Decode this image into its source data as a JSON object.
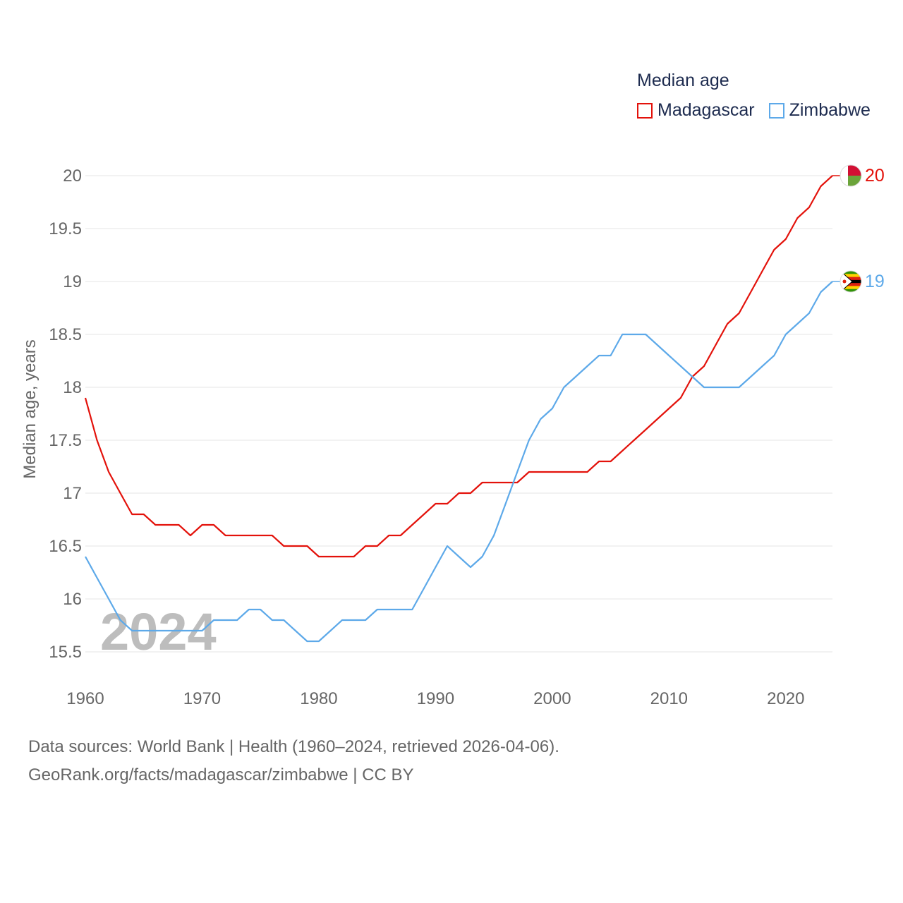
{
  "legend": {
    "title": "Median age",
    "items": [
      {
        "label": "Madagascar",
        "color": "#e3120b"
      },
      {
        "label": "Zimbabwe",
        "color": "#5da9e9"
      }
    ]
  },
  "footer": {
    "line1": "Data sources: World Bank | Health (1960–2024, retrieved 2026-04-06).",
    "line2": "GeoRank.org/facts/madagascar/zimbabwe | CC BY"
  },
  "watermark_year": "2024",
  "chart_data": {
    "type": "line",
    "title": "Median age",
    "xlabel": "",
    "ylabel": "Median age, years",
    "xlim": [
      1960,
      2024
    ],
    "ylim": [
      15.5,
      20
    ],
    "xticks": [
      1960,
      1970,
      1980,
      1990,
      2000,
      2010,
      2020
    ],
    "yticks": [
      15.5,
      16,
      16.5,
      17,
      17.5,
      18,
      18.5,
      19,
      19.5,
      20
    ],
    "grid": true,
    "legend_position": "top-right",
    "series": [
      {
        "name": "Madagascar",
        "color": "#e3120b",
        "end_label": "20",
        "x": [
          1960,
          1961,
          1962,
          1963,
          1964,
          1965,
          1966,
          1967,
          1968,
          1969,
          1970,
          1971,
          1972,
          1973,
          1974,
          1975,
          1976,
          1977,
          1978,
          1979,
          1980,
          1981,
          1982,
          1983,
          1984,
          1985,
          1986,
          1987,
          1988,
          1989,
          1990,
          1991,
          1992,
          1993,
          1994,
          1995,
          1996,
          1997,
          1998,
          1999,
          2000,
          2001,
          2002,
          2003,
          2004,
          2005,
          2006,
          2007,
          2008,
          2009,
          2010,
          2011,
          2012,
          2013,
          2014,
          2015,
          2016,
          2017,
          2018,
          2019,
          2020,
          2021,
          2022,
          2023,
          2024
        ],
        "values": [
          17.9,
          17.5,
          17.2,
          17.0,
          16.8,
          16.8,
          16.7,
          16.7,
          16.7,
          16.6,
          16.7,
          16.7,
          16.6,
          16.6,
          16.6,
          16.6,
          16.6,
          16.5,
          16.5,
          16.5,
          16.4,
          16.4,
          16.4,
          16.4,
          16.5,
          16.5,
          16.6,
          16.6,
          16.7,
          16.8,
          16.9,
          16.9,
          17.0,
          17.0,
          17.1,
          17.1,
          17.1,
          17.1,
          17.2,
          17.2,
          17.2,
          17.2,
          17.2,
          17.2,
          17.3,
          17.3,
          17.4,
          17.5,
          17.6,
          17.7,
          17.8,
          17.9,
          18.1,
          18.2,
          18.4,
          18.6,
          18.7,
          18.9,
          19.1,
          19.3,
          19.4,
          19.6,
          19.7,
          19.9,
          20.0
        ]
      },
      {
        "name": "Zimbabwe",
        "color": "#5da9e9",
        "end_label": "19",
        "x": [
          1960,
          1961,
          1962,
          1963,
          1964,
          1965,
          1966,
          1967,
          1968,
          1969,
          1970,
          1971,
          1972,
          1973,
          1974,
          1975,
          1976,
          1977,
          1978,
          1979,
          1980,
          1981,
          1982,
          1983,
          1984,
          1985,
          1986,
          1987,
          1988,
          1989,
          1990,
          1991,
          1992,
          1993,
          1994,
          1995,
          1996,
          1997,
          1998,
          1999,
          2000,
          2001,
          2002,
          2003,
          2004,
          2005,
          2006,
          2007,
          2008,
          2009,
          2010,
          2011,
          2012,
          2013,
          2014,
          2015,
          2016,
          2017,
          2018,
          2019,
          2020,
          2021,
          2022,
          2023,
          2024
        ],
        "values": [
          16.4,
          16.2,
          16.0,
          15.8,
          15.7,
          15.7,
          15.7,
          15.7,
          15.7,
          15.7,
          15.7,
          15.8,
          15.8,
          15.8,
          15.9,
          15.9,
          15.8,
          15.8,
          15.7,
          15.6,
          15.6,
          15.7,
          15.8,
          15.8,
          15.8,
          15.9,
          15.9,
          15.9,
          15.9,
          16.1,
          16.3,
          16.5,
          16.4,
          16.3,
          16.4,
          16.6,
          16.9,
          17.2,
          17.5,
          17.7,
          17.8,
          18.0,
          18.1,
          18.2,
          18.3,
          18.3,
          18.5,
          18.5,
          18.5,
          18.4,
          18.3,
          18.2,
          18.1,
          18.0,
          18.0,
          18.0,
          18.0,
          18.1,
          18.2,
          18.3,
          18.5,
          18.6,
          18.7,
          18.9,
          19.0
        ]
      }
    ]
  }
}
